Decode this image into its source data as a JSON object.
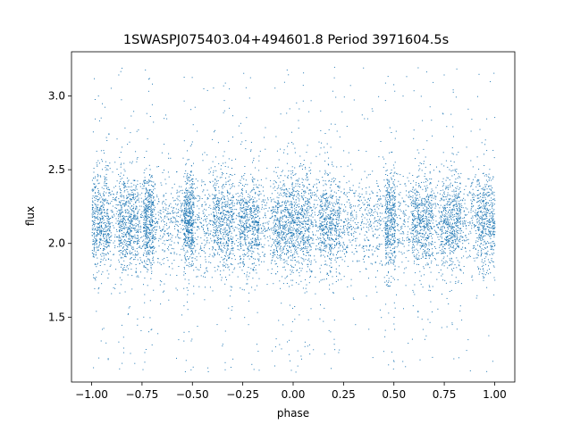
{
  "chart_data": {
    "type": "scatter",
    "title": "1SWASPJ075403.04+494601.8 Period 3971604.5s",
    "xlabel": "phase",
    "ylabel": "flux",
    "xlim": [
      -1.1,
      1.1
    ],
    "ylim": [
      1.06,
      3.3
    ],
    "xticks": [
      -1.0,
      -0.75,
      -0.5,
      -0.25,
      0.0,
      0.25,
      0.5,
      0.75,
      1.0
    ],
    "xtick_labels": [
      "−1.00",
      "−0.75",
      "−0.50",
      "−0.25",
      "0.00",
      "0.25",
      "0.50",
      "0.75",
      "1.00"
    ],
    "yticks": [
      1.5,
      2.0,
      2.5,
      3.0
    ],
    "ytick_labels": [
      "1.5",
      "2.0",
      "2.5",
      "3.0"
    ],
    "grid": false,
    "marker_color": "#1f77b4",
    "series": [
      {
        "phase_range": [
          -1.0,
          1.0
        ],
        "flux_center": 2.15,
        "flux_typical_range": [
          1.85,
          2.55
        ],
        "flux_full_range": [
          1.13,
          3.2
        ],
        "note_density_bands": [
          {
            "phase": -0.96,
            "spread": "wide"
          },
          {
            "phase": -0.82,
            "spread": "wide"
          },
          {
            "phase": -0.72,
            "spread": "narrow"
          },
          {
            "phase": -0.52,
            "spread": "narrow"
          },
          {
            "phase": -0.35,
            "spread": "wide"
          },
          {
            "phase": -0.22,
            "spread": "wide"
          },
          {
            "phase": -0.05,
            "spread": "wide"
          },
          {
            "phase": 0.04,
            "spread": "wide"
          },
          {
            "phase": 0.18,
            "spread": "wide"
          },
          {
            "phase": 0.48,
            "spread": "narrow"
          },
          {
            "phase": 0.64,
            "spread": "wide"
          },
          {
            "phase": 0.78,
            "spread": "wide"
          },
          {
            "phase": 0.96,
            "spread": "wide"
          }
        ]
      }
    ]
  }
}
